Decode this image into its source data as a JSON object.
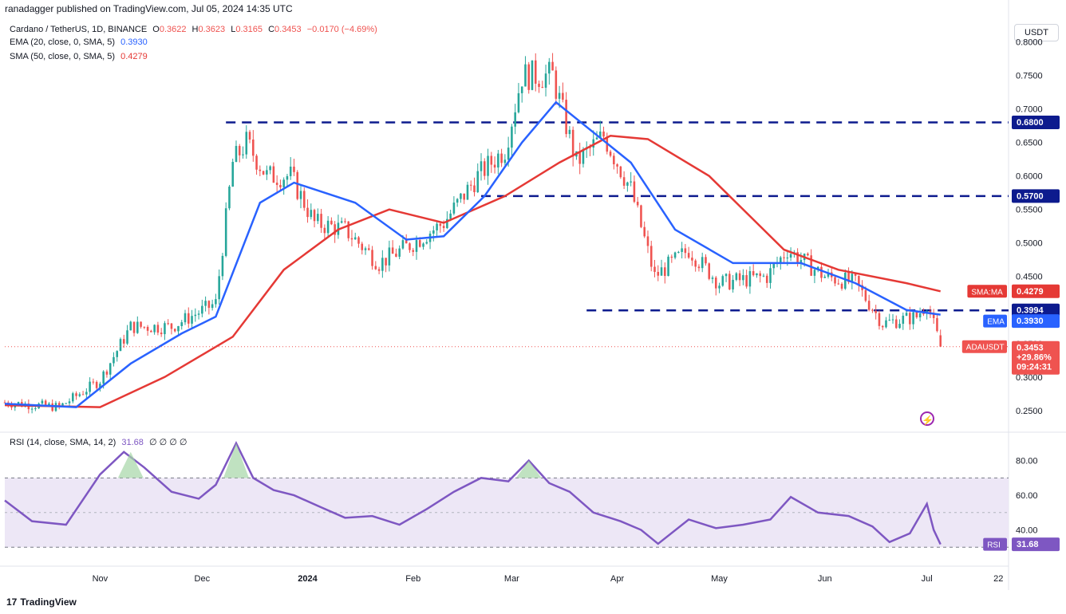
{
  "header": {
    "publisher_line": "ranadagger published on TradingView.com, Jul 05, 2024 14:35 UTC"
  },
  "legend": {
    "symbol": "Cardano / TetherUS, 1D, BINANCE",
    "open_label": "O",
    "open": "0.3622",
    "high_label": "H",
    "high": "0.3623",
    "low_label": "L",
    "low": "0.3165",
    "close_label": "C",
    "close": "0.3453",
    "change": "−0.0170 (−4.69%)",
    "ema_label": "EMA (20, close, 0, SMA, 5)",
    "ema_value": "0.3930",
    "sma_label": "SMA (50, close, 0, SMA, 5)",
    "sma_value": "0.4279",
    "rsi_label": "RSI (14, close, SMA, 14, 2)",
    "rsi_value": "31.68",
    "rsi_extra": "∅ ∅ ∅ ∅"
  },
  "toolbar": {
    "currency": "USDT"
  },
  "footer": {
    "brand": "TradingView",
    "logo_glyph": "17"
  },
  "colors": {
    "up": "#26a69a",
    "down": "#ef5350",
    "ema": "#2962ff",
    "sma": "#e53935",
    "level": "#0d1b8e",
    "rsi": "#7e57c2",
    "rsi_band": "#ede7f6",
    "rsi_overbought_fill": "#a5d6a7"
  },
  "icons": {
    "flash": "lightning-circle-icon"
  },
  "chart_data": [
    {
      "type": "candlestick",
      "title": "Cardano / TetherUS, 1D, BINANCE",
      "x_ticks": [
        "Nov",
        "Dec",
        "2024",
        "Feb",
        "Mar",
        "Apr",
        "May",
        "Jun",
        "Jul",
        "22"
      ],
      "x_range": [
        "2023-10-04",
        "2024-07-25"
      ],
      "y_ticks": [
        "0.2500",
        "0.3000",
        "0.3500",
        "0.4000",
        "0.4500",
        "0.5000",
        "0.5500",
        "0.6000",
        "0.6500",
        "0.7000",
        "0.7500",
        "0.8000"
      ],
      "ylim": [
        0.22,
        0.815
      ],
      "horizontal_levels": [
        {
          "value": 0.68,
          "label": "0.6800",
          "from": "2023-12-08"
        },
        {
          "value": 0.57,
          "label": "0.5700",
          "from": "2024-02-21"
        },
        {
          "value": 0.3994,
          "label": "0.3994",
          "from": "2024-03-23"
        }
      ],
      "price_labels": [
        {
          "name": "SMA:MA",
          "value": "0.4279"
        },
        {
          "name": "",
          "value": "0.3994"
        },
        {
          "name": "EMA",
          "value": "0.3930"
        },
        {
          "name": "ADAUSDT",
          "value": "0.3453",
          "lines": [
            "+29.86%",
            "09:24:31"
          ]
        }
      ],
      "monthly_path": [
        {
          "date": "2023-10-04",
          "close": 0.262
        },
        {
          "date": "2023-10-20",
          "close": 0.255
        },
        {
          "date": "2023-11-01",
          "close": 0.295
        },
        {
          "date": "2023-11-10",
          "close": 0.375
        },
        {
          "date": "2023-11-22",
          "close": 0.375
        },
        {
          "date": "2023-12-05",
          "close": 0.41
        },
        {
          "date": "2023-12-10",
          "close": 0.62
        },
        {
          "date": "2023-12-14",
          "close": 0.65
        },
        {
          "date": "2023-12-20",
          "close": 0.6
        },
        {
          "date": "2023-12-27",
          "close": 0.6
        },
        {
          "date": "2024-01-03",
          "close": 0.53
        },
        {
          "date": "2024-01-12",
          "close": 0.52
        },
        {
          "date": "2024-01-22",
          "close": 0.47
        },
        {
          "date": "2024-02-01",
          "close": 0.5
        },
        {
          "date": "2024-02-10",
          "close": 0.53
        },
        {
          "date": "2024-02-20",
          "close": 0.6
        },
        {
          "date": "2024-02-28",
          "close": 0.64
        },
        {
          "date": "2024-03-04",
          "close": 0.75
        },
        {
          "date": "2024-03-13",
          "close": 0.75
        },
        {
          "date": "2024-03-20",
          "close": 0.62
        },
        {
          "date": "2024-03-28",
          "close": 0.66
        },
        {
          "date": "2024-04-05",
          "close": 0.58
        },
        {
          "date": "2024-04-12",
          "close": 0.45
        },
        {
          "date": "2024-04-22",
          "close": 0.49
        },
        {
          "date": "2024-05-01",
          "close": 0.44
        },
        {
          "date": "2024-05-15",
          "close": 0.45
        },
        {
          "date": "2024-05-21",
          "close": 0.49
        },
        {
          "date": "2024-06-01",
          "close": 0.45
        },
        {
          "date": "2024-06-10",
          "close": 0.44
        },
        {
          "date": "2024-06-18",
          "close": 0.38
        },
        {
          "date": "2024-06-28",
          "close": 0.39
        },
        {
          "date": "2024-07-01",
          "close": 0.41
        },
        {
          "date": "2024-07-04",
          "close": 0.362
        },
        {
          "date": "2024-07-05",
          "close": 0.3453
        }
      ],
      "ema20": [
        {
          "date": "2023-10-04",
          "v": 0.26
        },
        {
          "date": "2023-10-25",
          "v": 0.255
        },
        {
          "date": "2023-11-10",
          "v": 0.32
        },
        {
          "date": "2023-11-25",
          "v": 0.365
        },
        {
          "date": "2023-12-05",
          "v": 0.39
        },
        {
          "date": "2023-12-18",
          "v": 0.56
        },
        {
          "date": "2023-12-28",
          "v": 0.59
        },
        {
          "date": "2024-01-15",
          "v": 0.56
        },
        {
          "date": "2024-01-30",
          "v": 0.505
        },
        {
          "date": "2024-02-10",
          "v": 0.51
        },
        {
          "date": "2024-02-22",
          "v": 0.57
        },
        {
          "date": "2024-03-04",
          "v": 0.65
        },
        {
          "date": "2024-03-14",
          "v": 0.71
        },
        {
          "date": "2024-03-25",
          "v": 0.665
        },
        {
          "date": "2024-04-05",
          "v": 0.62
        },
        {
          "date": "2024-04-18",
          "v": 0.52
        },
        {
          "date": "2024-05-05",
          "v": 0.47
        },
        {
          "date": "2024-05-25",
          "v": 0.47
        },
        {
          "date": "2024-06-10",
          "v": 0.44
        },
        {
          "date": "2024-06-25",
          "v": 0.4
        },
        {
          "date": "2024-07-05",
          "v": 0.393
        }
      ],
      "sma50": [
        {
          "date": "2023-10-04",
          "v": 0.258
        },
        {
          "date": "2023-11-01",
          "v": 0.255
        },
        {
          "date": "2023-11-20",
          "v": 0.3
        },
        {
          "date": "2023-12-10",
          "v": 0.36
        },
        {
          "date": "2023-12-25",
          "v": 0.46
        },
        {
          "date": "2024-01-10",
          "v": 0.52
        },
        {
          "date": "2024-01-25",
          "v": 0.55
        },
        {
          "date": "2024-02-10",
          "v": 0.53
        },
        {
          "date": "2024-02-28",
          "v": 0.57
        },
        {
          "date": "2024-03-15",
          "v": 0.62
        },
        {
          "date": "2024-03-30",
          "v": 0.66
        },
        {
          "date": "2024-04-10",
          "v": 0.655
        },
        {
          "date": "2024-04-28",
          "v": 0.6
        },
        {
          "date": "2024-05-20",
          "v": 0.49
        },
        {
          "date": "2024-06-05",
          "v": 0.46
        },
        {
          "date": "2024-06-25",
          "v": 0.44
        },
        {
          "date": "2024-07-05",
          "v": 0.4279
        }
      ],
      "legend": [
        "EMA (20, close, 0, SMA, 5)",
        "SMA (50, close, 0, SMA, 5)"
      ]
    },
    {
      "type": "line",
      "title": "RSI (14, close, SMA, 14, 2)",
      "y_ticks": [
        "40.00",
        "60.00",
        "80.00"
      ],
      "ylim": [
        20,
        95
      ],
      "band": [
        30,
        70
      ],
      "mid": 50,
      "current": {
        "label": "RSI",
        "value": "31.68"
      },
      "x": [
        "2023-10-04",
        "2023-10-12",
        "2023-10-22",
        "2023-11-01",
        "2023-11-08",
        "2023-11-14",
        "2023-11-22",
        "2023-11-30",
        "2023-12-05",
        "2023-12-11",
        "2023-12-16",
        "2023-12-22",
        "2023-12-28",
        "2024-01-05",
        "2024-01-12",
        "2024-01-20",
        "2024-01-28",
        "2024-02-05",
        "2024-02-13",
        "2024-02-21",
        "2024-02-29",
        "2024-03-06",
        "2024-03-12",
        "2024-03-18",
        "2024-03-25",
        "2024-04-02",
        "2024-04-08",
        "2024-04-13",
        "2024-04-22",
        "2024-04-30",
        "2024-05-08",
        "2024-05-16",
        "2024-05-22",
        "2024-05-30",
        "2024-06-08",
        "2024-06-15",
        "2024-06-20",
        "2024-06-26",
        "2024-07-01",
        "2024-07-03",
        "2024-07-05"
      ],
      "values": [
        57,
        45,
        43,
        72,
        85,
        76,
        62,
        58,
        66,
        90,
        70,
        63,
        60,
        53,
        47,
        48,
        43,
        52,
        62,
        70,
        68,
        80,
        67,
        62,
        50,
        45,
        40,
        32,
        46,
        41,
        43,
        46,
        59,
        50,
        48,
        42,
        33,
        38,
        55,
        40,
        31.68
      ]
    }
  ]
}
